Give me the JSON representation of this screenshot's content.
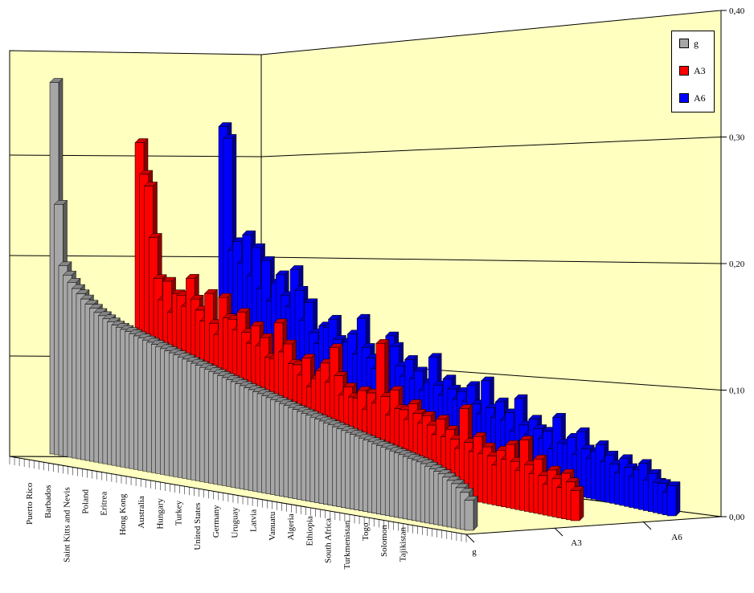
{
  "chart_data": {
    "type": "bar",
    "projection": "3d",
    "title": "",
    "xlabel": "",
    "ylabel": "",
    "ylim": [
      0,
      0.4
    ],
    "y_ticks": [
      "0,00",
      "0,10",
      "0,20",
      "0,30",
      "0,40"
    ],
    "grid": true,
    "legend_position": "top-right",
    "depth_categories": [
      "g",
      "A3",
      "A6"
    ],
    "country_labels": [
      "Puerto Rico",
      "Barbados",
      "Saint Kitts and Nevis",
      "Poland",
      "Eritrea",
      "Hong Kong",
      "Australia",
      "Hungary",
      "Turkey",
      "United States",
      "Germany",
      "Uruguay",
      "Latvia",
      "Vanuatu",
      "Algeria",
      "Ethiopia",
      "South Africa",
      "Turkmenistan",
      "Togo",
      "Solomon",
      "Tajikistan"
    ],
    "n_countries": 95,
    "series": [
      {
        "name": "g",
        "color": "#a6a6a6",
        "values": [
          0.37,
          0.25,
          0.19,
          0.182,
          0.176,
          0.171,
          0.167,
          0.163,
          0.159,
          0.156,
          0.153,
          0.151,
          0.149,
          0.147,
          0.145,
          0.144,
          0.143,
          0.142,
          0.141,
          0.14,
          0.139,
          0.138,
          0.137,
          0.136,
          0.135,
          0.134,
          0.133,
          0.132,
          0.131,
          0.13,
          0.129,
          0.128,
          0.127,
          0.126,
          0.125,
          0.124,
          0.123,
          0.122,
          0.121,
          0.12,
          0.119,
          0.118,
          0.117,
          0.116,
          0.115,
          0.114,
          0.113,
          0.112,
          0.111,
          0.11,
          0.109,
          0.108,
          0.107,
          0.106,
          0.105,
          0.104,
          0.103,
          0.102,
          0.101,
          0.1,
          0.099,
          0.098,
          0.097,
          0.096,
          0.095,
          0.094,
          0.093,
          0.092,
          0.091,
          0.09,
          0.089,
          0.088,
          0.087,
          0.086,
          0.085,
          0.084,
          0.083,
          0.082,
          0.081,
          0.08,
          0.079,
          0.078,
          0.077,
          0.076,
          0.075,
          0.073,
          0.071,
          0.069,
          0.067,
          0.064,
          0.061,
          0.058,
          0.054,
          0.049,
          0.04
        ]
      },
      {
        "name": "A3",
        "color": "#ff0000",
        "values": [
          0.29,
          0.26,
          0.25,
          0.2,
          0.16,
          0.14,
          0.16,
          0.13,
          0.15,
          0.15,
          0.14,
          0.17,
          0.15,
          0.14,
          0.13,
          0.16,
          0.13,
          0.12,
          0.16,
          0.14,
          0.14,
          0.13,
          0.15,
          0.13,
          0.12,
          0.14,
          0.12,
          0.13,
          0.11,
          0.11,
          0.15,
          0.12,
          0.13,
          0.11,
          0.11,
          0.1,
          0.12,
          0.09,
          0.1,
          0.11,
          0.12,
          0.1,
          0.14,
          0.11,
          0.09,
          0.1,
          0.09,
          0.09,
          0.1,
          0.08,
          0.1,
          0.09,
          0.16,
          0.1,
          0.08,
          0.11,
          0.09,
          0.09,
          0.08,
          0.1,
          0.09,
          0.08,
          0.09,
          0.08,
          0.07,
          0.09,
          0.07,
          0.08,
          0.07,
          0.06,
          0.11,
          0.07,
          0.06,
          0.08,
          0.06,
          0.07,
          0.06,
          0.05,
          0.07,
          0.06,
          0.08,
          0.06,
          0.05,
          0.09,
          0.06,
          0.05,
          0.07,
          0.05,
          0.04,
          0.06,
          0.05,
          0.04,
          0.06,
          0.05,
          0.04
        ]
      },
      {
        "name": "A6",
        "color": "#0000ff",
        "values": [
          0.29,
          0.28,
          0.17,
          0.18,
          0.16,
          0.19,
          0.15,
          0.18,
          0.14,
          0.17,
          0.13,
          0.15,
          0.16,
          0.14,
          0.13,
          0.17,
          0.15,
          0.12,
          0.14,
          0.11,
          0.1,
          0.12,
          0.12,
          0.13,
          0.11,
          0.1,
          0.11,
          0.12,
          0.1,
          0.14,
          0.11,
          0.1,
          0.09,
          0.11,
          0.1,
          0.13,
          0.12,
          0.1,
          0.09,
          0.11,
          0.09,
          0.1,
          0.08,
          0.09,
          0.12,
          0.09,
          0.08,
          0.1,
          0.09,
          0.08,
          0.09,
          0.08,
          0.1,
          0.08,
          0.07,
          0.11,
          0.08,
          0.07,
          0.09,
          0.07,
          0.08,
          0.06,
          0.1,
          0.07,
          0.06,
          0.08,
          0.07,
          0.06,
          0.07,
          0.05,
          0.09,
          0.06,
          0.06,
          0.07,
          0.05,
          0.08,
          0.06,
          0.05,
          0.06,
          0.07,
          0.05,
          0.06,
          0.05,
          0.04,
          0.06,
          0.05,
          0.04,
          0.05,
          0.06,
          0.04,
          0.05,
          0.04,
          0.04,
          0.03,
          0.04
        ]
      }
    ]
  }
}
